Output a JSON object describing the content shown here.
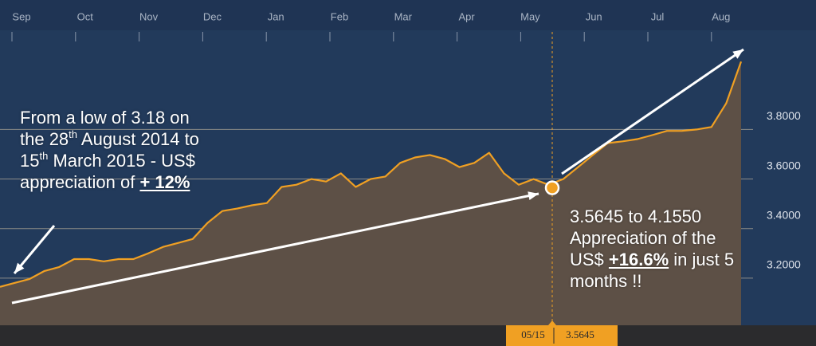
{
  "chart_data": {
    "type": "area",
    "x_labels": [
      "Sep",
      "Oct",
      "Nov",
      "Dec",
      "Jan",
      "Feb",
      "Mar",
      "Apr",
      "May",
      "Jun",
      "Jul",
      "Aug"
    ],
    "values": [
      3.165,
      3.181,
      3.197,
      3.229,
      3.245,
      3.277,
      3.277,
      3.268,
      3.277,
      3.277,
      3.3,
      3.326,
      3.342,
      3.358,
      3.423,
      3.471,
      3.481,
      3.494,
      3.503,
      3.568,
      3.577,
      3.6,
      3.59,
      3.623,
      3.568,
      3.6,
      3.61,
      3.665,
      3.687,
      3.697,
      3.681,
      3.648,
      3.665,
      3.706,
      3.623,
      3.577,
      3.6,
      3.577,
      3.6,
      3.648,
      3.697,
      3.745,
      3.752,
      3.761,
      3.777,
      3.794,
      3.794,
      3.8,
      3.81,
      3.906,
      4.074
    ],
    "line_color": "#f0a023",
    "fill_color": "#5d5046",
    "ylim": [
      3.01,
      4.2
    ],
    "yticks": [
      {
        "value": 3.2,
        "label": "3.2000"
      },
      {
        "value": 3.4,
        "label": "3.4000"
      },
      {
        "value": 3.6,
        "label": "3.6000"
      },
      {
        "value": 3.8,
        "label": "3.8000"
      }
    ],
    "grid": true,
    "crosshair": {
      "date": "05/15",
      "value": 3.5645
    },
    "annotations": [
      {
        "lines": [
          [
            "From a low of 3.18 on"
          ],
          [
            "the 28",
            "th",
            " August 2014 to"
          ],
          [
            "15",
            "th",
            " March 2015  - US$"
          ],
          [
            "appreciation of ",
            "+ 12%"
          ]
        ]
      },
      {
        "lines": [
          [
            "3.5645 to 4.1550"
          ],
          [
            "Appreciation of the"
          ],
          [
            "US$ ",
            "+16.6%",
            " in just 5"
          ],
          [
            "months !!"
          ]
        ]
      }
    ]
  }
}
